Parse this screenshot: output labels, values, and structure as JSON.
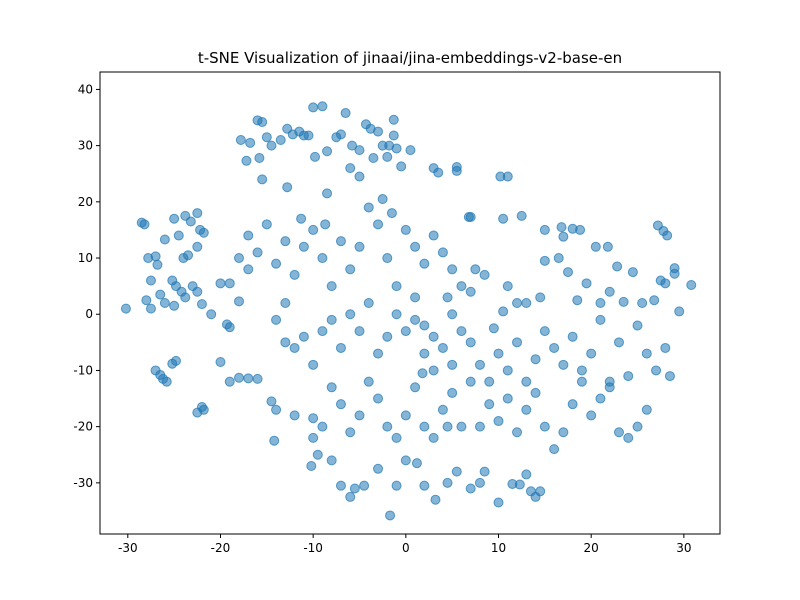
{
  "chart_data": {
    "type": "scatter",
    "title": "t-SNE Visualization of jinaai/jina-embeddings-v2-base-en",
    "xlim": [
      -33.0,
      33.9
    ],
    "ylim": [
      -39.1,
      43.1
    ],
    "xticks": [
      -30,
      -20,
      -10,
      0,
      10,
      20,
      30
    ],
    "yticks": [
      -30,
      -20,
      -10,
      0,
      10,
      20,
      30,
      40
    ],
    "grid": false,
    "color": "#1f77b4",
    "x": [
      -30.2,
      -28.5,
      -28.2,
      -28,
      -27.8,
      -27.5,
      -27,
      -26.8,
      -26.5,
      -27,
      -26.5,
      -26.2,
      -25.8,
      -25.2,
      -24.8,
      -26,
      -25,
      -24.5,
      -23.8,
      -23.2,
      -22.5,
      -22.2,
      -21.8,
      -22.5,
      -24,
      -23.5,
      -25.2,
      -24.8,
      -24.2,
      -23.8,
      -23,
      -22.5,
      -22,
      -21,
      -25,
      -26,
      -27.5,
      -20,
      -19.3,
      -19,
      -19,
      -18,
      -17,
      -16,
      -22.5,
      -22,
      -21.8,
      -17.8,
      -16.8,
      -16,
      -15.5,
      -15,
      -14.5,
      -13.5,
      -12.8,
      -12.2,
      -11.5,
      -11,
      -10.5,
      -10,
      -9,
      -9.8,
      -8.5,
      -7.5,
      -7,
      -6.5,
      -5.8,
      -5,
      -4.3,
      -3.8,
      -3,
      -2.5,
      -1.8,
      -1.3,
      -1.3,
      -1,
      -0.5,
      0.5,
      -2,
      -3.5,
      -5,
      -6,
      -8.5,
      -17.2,
      -15.8,
      -12.8,
      -15.5,
      3,
      3.5,
      5.5,
      5.5,
      6.8,
      7,
      10.2,
      11,
      10.5,
      12.5,
      15,
      16.8,
      17,
      18,
      18.8,
      20.5,
      21.8,
      22.8,
      27.2,
      27.8,
      28.2,
      29,
      29,
      30.8,
      29.5,
      28,
      27.5,
      26.8,
      25.5,
      24.5,
      23.5,
      22,
      21,
      19.5,
      18.5,
      17.5,
      16.5,
      15,
      14.5,
      13,
      12,
      11,
      10.5,
      9.5,
      8.5,
      7.5,
      7,
      6,
      5,
      4.5,
      3,
      2,
      1,
      -1,
      -2,
      -3,
      -4,
      -2.5,
      -1.5,
      0,
      1,
      2,
      3,
      4,
      5,
      -5,
      -6,
      -7,
      -8,
      -9,
      -10,
      -11,
      -12,
      -13,
      -14,
      -15,
      -16,
      -17,
      -18,
      -19,
      -20,
      -18,
      -17,
      -14,
      -13,
      -12,
      -11,
      -10,
      -9,
      -8,
      -7,
      -6,
      -5,
      -4,
      -3,
      -2,
      -1,
      0,
      1,
      2,
      3,
      4,
      5,
      6,
      7,
      8,
      9,
      10,
      11,
      12,
      13,
      14,
      15,
      16,
      17,
      18,
      19,
      20,
      21,
      22,
      23,
      24,
      25,
      26,
      27,
      28,
      28.5,
      -14.5,
      -14,
      -12,
      -10,
      -10,
      -9,
      -8,
      -7,
      -6,
      -5,
      -4,
      -3,
      -2,
      -1,
      0,
      1,
      2,
      3,
      4,
      5,
      6,
      7,
      8,
      9,
      10,
      11,
      12,
      13,
      14,
      15,
      16,
      17,
      18,
      19,
      20,
      21,
      22,
      23,
      24,
      25,
      26,
      -14.2,
      -10.2,
      -9.5,
      -8,
      -7,
      -6,
      -5.5,
      -4.5,
      -3,
      -1.7,
      -1,
      0,
      1.2,
      2,
      3.2,
      4.5,
      5.5,
      7,
      8,
      8.5,
      10,
      11.5,
      12.3,
      13,
      13.5,
      14,
      14.5,
      -13,
      -11.3,
      -8.7,
      1.8,
      4.5
    ],
    "values": [
      1,
      16.3,
      16,
      2.5,
      10,
      6,
      10.3,
      8.8,
      3.5,
      -10,
      -10.8,
      -11.5,
      -12,
      -8.8,
      -8.3,
      13.3,
      17,
      14,
      17.5,
      16.5,
      18,
      15,
      14.5,
      12,
      10,
      10.5,
      6,
      5,
      4,
      3,
      5,
      4,
      1.8,
      0,
      1.5,
      2,
      1,
      -8.5,
      -1.8,
      -2.3,
      -12,
      -11.3,
      -11.4,
      -11.5,
      -17.5,
      -16.5,
      -17,
      31,
      30.5,
      34.5,
      34.2,
      31.5,
      30,
      31,
      33,
      32,
      32.5,
      31.8,
      31.8,
      36.8,
      37,
      28,
      29,
      31.5,
      32,
      35.8,
      30,
      29.2,
      33.8,
      33,
      32.5,
      30,
      30,
      34.6,
      31.8,
      29.5,
      26.3,
      29.2,
      28,
      27.8,
      24.5,
      26,
      21.5,
      27.3,
      27.8,
      22.6,
      24,
      26,
      25.2,
      26.2,
      25.5,
      17.3,
      17.3,
      24.5,
      24.5,
      17,
      17.5,
      15,
      15.5,
      13.8,
      15.2,
      15,
      12,
      12,
      8.5,
      15.8,
      14.8,
      14,
      8.2,
      7.2,
      5.2,
      0.5,
      5.5,
      6,
      2.5,
      2,
      7.5,
      2.2,
      4,
      2,
      5.5,
      2.5,
      7.5,
      10,
      9.5,
      3,
      2,
      2,
      5,
      0.5,
      -2.5,
      7,
      8,
      4,
      5,
      0,
      3,
      -4,
      -7,
      -1,
      5,
      10,
      16,
      19,
      20.5,
      18,
      15,
      12,
      9,
      14,
      11,
      8,
      12,
      8,
      13,
      5,
      10,
      15,
      12,
      7,
      2,
      9,
      16,
      11,
      14,
      10,
      5.5,
      5.5,
      2.3,
      8,
      -1,
      -5,
      -6,
      -4,
      -9,
      -3,
      -1,
      -6,
      0,
      -3,
      2,
      -7,
      -4,
      0,
      -3,
      3,
      -2,
      -10,
      -6,
      -9,
      -3,
      -5,
      -9,
      -12,
      -7,
      -10,
      -5,
      -12,
      -8,
      -3,
      -6,
      -9,
      -4,
      -10,
      -7,
      -1,
      -12,
      -5,
      -11,
      -2,
      -7,
      -10,
      -6,
      -11,
      -15.5,
      -17,
      -18,
      -18.5,
      -22,
      -20,
      -13,
      -16,
      -21,
      -18,
      -12,
      -15,
      -20,
      -22,
      -18,
      -13,
      -20,
      -22,
      -17,
      -14,
      -20,
      -12,
      -20,
      -16,
      -19,
      -15,
      -21,
      -17,
      -14,
      -20,
      -24,
      -21,
      -16,
      -12,
      -18,
      -15,
      -13,
      -21,
      -22,
      -20,
      -17,
      -22.5,
      -27,
      -25,
      -26,
      -30.5,
      -32.5,
      -31,
      -30.5,
      -27.5,
      -35.8,
      -30.5,
      -26,
      -26.5,
      -30.5,
      -33,
      -30,
      -28,
      -31,
      -30,
      -28,
      -33.5,
      -30.2,
      -30.3,
      -28.5,
      -31.5,
      -32.5,
      -31.5,
      13,
      17,
      16,
      -10.5,
      -20
    ]
  }
}
